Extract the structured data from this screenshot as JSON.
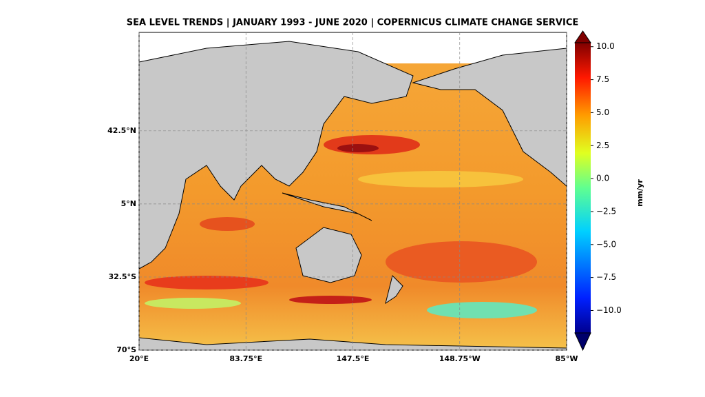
{
  "title": "SEA LEVEL TRENDS | JANUARY 1993 - JUNE 2020 | COPERNICUS CLIMATE CHANGE SERVICE",
  "map": {
    "lon_lim": [
      20,
      275
    ],
    "lat_lim": [
      -70,
      93
    ],
    "lon_ticks": [
      {
        "value": 20,
        "label": "20°E"
      },
      {
        "value": 83.75,
        "label": "83.75°E"
      },
      {
        "value": 147.5,
        "label": "147.5°E"
      },
      {
        "value": 211.25,
        "label": "148.75°W"
      },
      {
        "value": 275,
        "label": "85°W"
      }
    ],
    "lat_ticks": [
      {
        "value": 42.5,
        "label": "42.5°N"
      },
      {
        "value": 5,
        "label": "5°N"
      },
      {
        "value": -32.5,
        "label": "32.5°S"
      },
      {
        "value": -70,
        "label": "70°S"
      }
    ]
  },
  "colorbar": {
    "label": "mm/yr",
    "lim": [
      -11.7,
      10.3
    ],
    "ticks": [
      {
        "value": 10,
        "label": "10.0"
      },
      {
        "value": 7.5,
        "label": "7.5"
      },
      {
        "value": 5,
        "label": "5.0"
      },
      {
        "value": 2.5,
        "label": "2.5"
      },
      {
        "value": 0,
        "label": "0.0"
      },
      {
        "value": -2.5,
        "label": "−2.5"
      },
      {
        "value": -5,
        "label": "−5.0"
      },
      {
        "value": -7.5,
        "label": "−7.5"
      },
      {
        "value": -10,
        "label": "−10.0"
      }
    ]
  }
}
